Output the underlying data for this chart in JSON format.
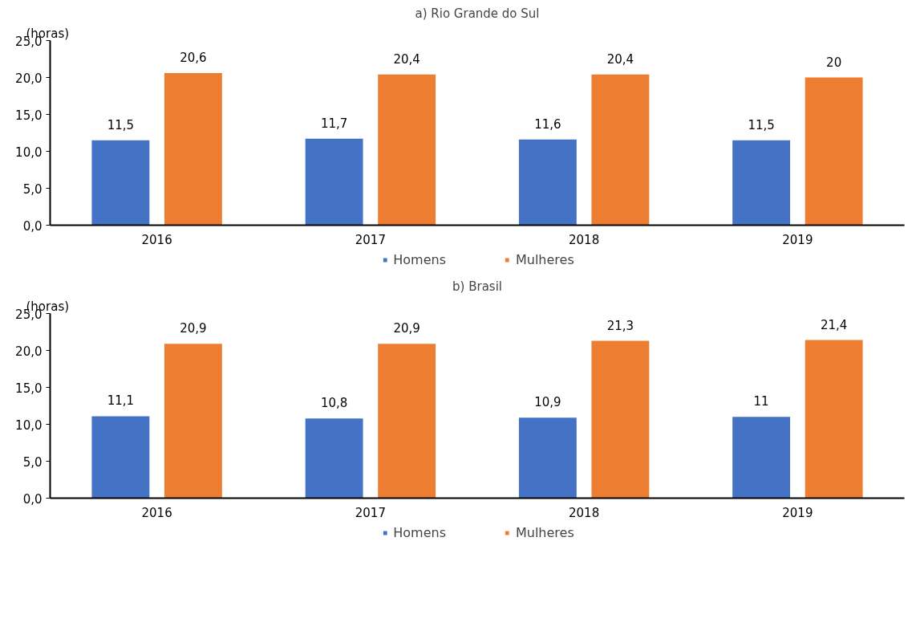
{
  "chart_data": [
    {
      "type": "bar",
      "title": "a) Rio Grande do Sul",
      "ylabel": "(horas)",
      "categories": [
        "2016",
        "2017",
        "2018",
        "2019"
      ],
      "series": [
        {
          "name": "Homens",
          "color": "#4472c4",
          "values": [
            11.5,
            11.7,
            11.6,
            11.5
          ],
          "value_labels": [
            "11,5",
            "11,7",
            "11,6",
            "11,5"
          ]
        },
        {
          "name": "Mulheres",
          "color": "#ed7d31",
          "values": [
            20.6,
            20.4,
            20.4,
            20
          ],
          "value_labels": [
            "20,6",
            "20,4",
            "20,4",
            "20"
          ]
        }
      ],
      "ylim": [
        0,
        25
      ],
      "yticks": [
        {
          "value": 0,
          "label": "0,0"
        },
        {
          "value": 5,
          "label": "5,0"
        },
        {
          "value": 10,
          "label": "10,0"
        },
        {
          "value": 15,
          "label": "15,0"
        },
        {
          "value": 20,
          "label": "20,0"
        },
        {
          "value": 25,
          "label": "25,0"
        }
      ],
      "grid": false,
      "legend": "bottom"
    },
    {
      "type": "bar",
      "title": "b) Brasil",
      "ylabel": "(horas)",
      "categories": [
        "2016",
        "2017",
        "2018",
        "2019"
      ],
      "series": [
        {
          "name": "Homens",
          "color": "#4472c4",
          "values": [
            11.1,
            10.8,
            10.9,
            11
          ],
          "value_labels": [
            "11,1",
            "10,8",
            "10,9",
            "11"
          ]
        },
        {
          "name": "Mulheres",
          "color": "#ed7d31",
          "values": [
            20.9,
            20.9,
            21.3,
            21.4
          ],
          "value_labels": [
            "20,9",
            "20,9",
            "21,3",
            "21,4"
          ]
        }
      ],
      "ylim": [
        0,
        25
      ],
      "yticks": [
        {
          "value": 0,
          "label": "0,0"
        },
        {
          "value": 5,
          "label": "5,0"
        },
        {
          "value": 10,
          "label": "10,0"
        },
        {
          "value": 15,
          "label": "15,0"
        },
        {
          "value": 20,
          "label": "20,0"
        },
        {
          "value": 25,
          "label": "25,0"
        }
      ],
      "grid": false,
      "legend": "bottom"
    }
  ]
}
